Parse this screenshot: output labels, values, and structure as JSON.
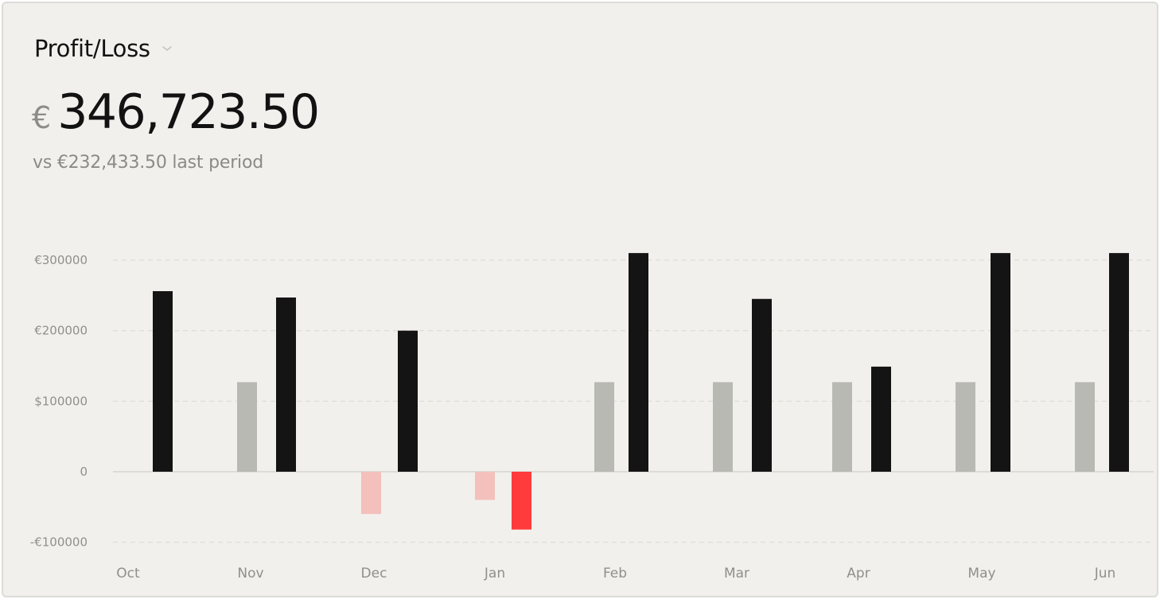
{
  "header": {
    "title": "Profit/Loss",
    "currency_symbol": "€",
    "amount": "346,723.50",
    "comparison": "vs €232,433.50 last period",
    "dropdown_icon": "chevron-down-icon"
  },
  "colors": {
    "profit_current": "#141414",
    "profit_previous": "#b9b9b3",
    "loss_current": "#ff3b3b",
    "loss_previous": "#f4c0bc",
    "grid": "#dcdbd6",
    "baseline": "#d6d5d0"
  },
  "chart_data": {
    "type": "bar",
    "categories": [
      "Oct",
      "Nov",
      "Dec",
      "Jan",
      "Feb",
      "Mar",
      "Apr",
      "May",
      "Jun"
    ],
    "series": [
      {
        "role": "previous",
        "values": [
          null,
          127000,
          -60000,
          -40000,
          127000,
          127000,
          127000,
          127000,
          127000
        ]
      },
      {
        "role": "current",
        "values": [
          256000,
          247000,
          200000,
          -82000,
          310000,
          245000,
          149000,
          310000,
          310000
        ]
      }
    ],
    "y_ticks": [
      {
        "value": 300000,
        "label": "€300000"
      },
      {
        "value": 200000,
        "label": "€200000"
      },
      {
        "value": 100000,
        "label": "$100000"
      },
      {
        "value": 0,
        "label": "0"
      },
      {
        "value": -100000,
        "label": "-€100000"
      }
    ],
    "ylim": [
      -100000,
      300000
    ],
    "grid": true,
    "legend": "none"
  }
}
